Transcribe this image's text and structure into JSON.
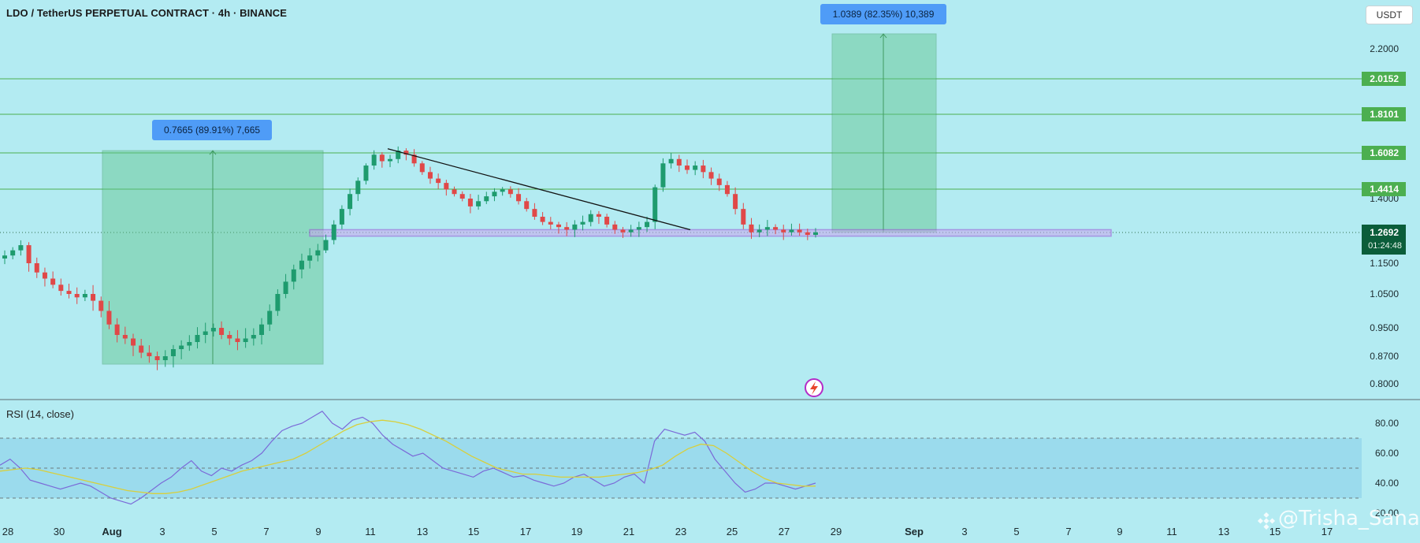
{
  "header": {
    "title": "LDO / TetherUS PERPETUAL CONTRACT · 4h · BINANCE",
    "currency_button": "USDT"
  },
  "colors": {
    "background": "#b3ebf2",
    "up_candle": "#1e9b6e",
    "down_candle": "#e04848",
    "zone_purple": "#9b4fd6",
    "target_box": "#5ec48a",
    "level_green": "#4caf50",
    "label_blue": "#4f9cf7",
    "rsi_line": "#7b6ad8",
    "rsi_ma": "#d8cf3c"
  },
  "rsi": {
    "label": "RSI (14, close)",
    "axis_labels": [
      "80.00",
      "60.00",
      "40.00",
      "20.00"
    ],
    "levels": [
      70,
      50,
      30
    ]
  },
  "annotations": {
    "left_measure": "0.7665 (89.91%) 7,665",
    "right_measure": "1.0389 (82.35%) 10,389"
  },
  "price_tags": {
    "current": "1.2692",
    "countdown": "01:24:48"
  },
  "watermark": "@Trisha_Sana",
  "chart_data": {
    "type": "candlestick",
    "timeframe": "4h",
    "y_axis_labels": [
      "2.2000",
      "1.4000",
      "1.1500",
      "1.0500",
      "0.9500",
      "0.8700",
      "0.8000"
    ],
    "horizontal_levels": [
      {
        "label": "2.0152",
        "value": 2.0152
      },
      {
        "label": "1.8101",
        "value": 1.8101
      },
      {
        "label": "1.6082",
        "value": 1.6082
      },
      {
        "label": "1.4414",
        "value": 1.4414
      }
    ],
    "current_price": 1.2692,
    "x_axis_labels": [
      "28",
      "30",
      "Aug",
      "3",
      "5",
      "7",
      "9",
      "11",
      "13",
      "15",
      "17",
      "19",
      "21",
      "23",
      "25",
      "27",
      "29",
      "Sep",
      "3",
      "5",
      "7",
      "9",
      "11",
      "13",
      "15",
      "17"
    ],
    "support_zone": {
      "low": 1.255,
      "high": 1.28
    },
    "descending_trendline": {
      "from": [
        "Aug 11",
        1.63
      ],
      "to": [
        "Aug 23",
        1.28
      ]
    },
    "measures": [
      {
        "text": "0.7665 (89.91%) 7,665",
        "from_price": 0.85,
        "to_price": 1.62
      },
      {
        "text": "1.0389 (82.35%) 10,389",
        "from_price": 1.27,
        "to_price": 2.3
      }
    ],
    "close_path": [
      1.18,
      1.2,
      1.22,
      1.15,
      1.12,
      1.1,
      1.08,
      1.06,
      1.05,
      1.04,
      1.05,
      1.03,
      1.0,
      0.96,
      0.93,
      0.92,
      0.9,
      0.88,
      0.87,
      0.86,
      0.87,
      0.89,
      0.9,
      0.91,
      0.93,
      0.94,
      0.95,
      0.93,
      0.92,
      0.91,
      0.92,
      0.93,
      0.96,
      1.0,
      1.05,
      1.09,
      1.13,
      1.16,
      1.18,
      1.2,
      1.24,
      1.3,
      1.36,
      1.42,
      1.48,
      1.55,
      1.6,
      1.57,
      1.58,
      1.62,
      1.6,
      1.56,
      1.52,
      1.49,
      1.47,
      1.44,
      1.42,
      1.4,
      1.37,
      1.39,
      1.41,
      1.43,
      1.44,
      1.42,
      1.39,
      1.36,
      1.33,
      1.31,
      1.3,
      1.29,
      1.28,
      1.3,
      1.31,
      1.34,
      1.33,
      1.3,
      1.28,
      1.27,
      1.28,
      1.29,
      1.31,
      1.45,
      1.56,
      1.58,
      1.55,
      1.53,
      1.55,
      1.52,
      1.49,
      1.46,
      1.42,
      1.36,
      1.3,
      1.27,
      1.28,
      1.29,
      1.28,
      1.27,
      1.28,
      1.27,
      1.26,
      1.27
    ],
    "rsi_values": [
      52,
      56,
      50,
      42,
      40,
      38,
      36,
      38,
      40,
      38,
      34,
      30,
      28,
      26,
      30,
      35,
      40,
      44,
      50,
      55,
      48,
      45,
      50,
      48,
      52,
      55,
      60,
      68,
      75,
      78,
      80,
      84,
      88,
      80,
      76,
      82,
      84,
      80,
      72,
      66,
      62,
      58,
      60,
      55,
      50,
      48,
      46,
      44,
      48,
      50,
      47,
      44,
      45,
      42,
      40,
      38,
      40,
      44,
      46,
      42,
      38,
      40,
      44,
      46,
      40,
      68,
      76,
      74,
      72,
      74,
      68,
      56,
      48,
      40,
      34,
      36,
      40,
      40,
      38,
      36,
      38,
      40
    ],
    "rsi_ma_values": [
      48,
      49,
      50,
      49,
      47,
      45,
      43,
      41,
      39,
      37,
      35,
      34,
      33,
      33,
      34,
      36,
      39,
      42,
      45,
      48,
      50,
      52,
      54,
      56,
      60,
      65,
      70,
      75,
      79,
      81,
      82,
      81,
      79,
      76,
      72,
      68,
      63,
      58,
      54,
      50,
      48,
      46,
      46,
      45,
      44,
      44,
      44,
      44,
      45,
      46,
      47,
      49,
      52,
      58,
      63,
      66,
      65,
      60,
      54,
      48,
      43,
      40,
      39,
      38,
      38
    ]
  }
}
